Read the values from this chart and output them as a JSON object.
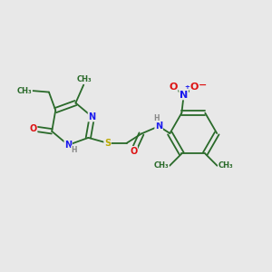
{
  "bg_color": "#e8e8e8",
  "bond_color": "#2a6a2a",
  "N_color": "#1a1aee",
  "O_color": "#dd1111",
  "S_color": "#bbaa00",
  "H_color": "#888888",
  "font_size": 7.0,
  "figsize": [
    3.0,
    3.0
  ],
  "dpi": 100,
  "xlim": [
    0,
    10
  ],
  "ylim": [
    0,
    10
  ]
}
